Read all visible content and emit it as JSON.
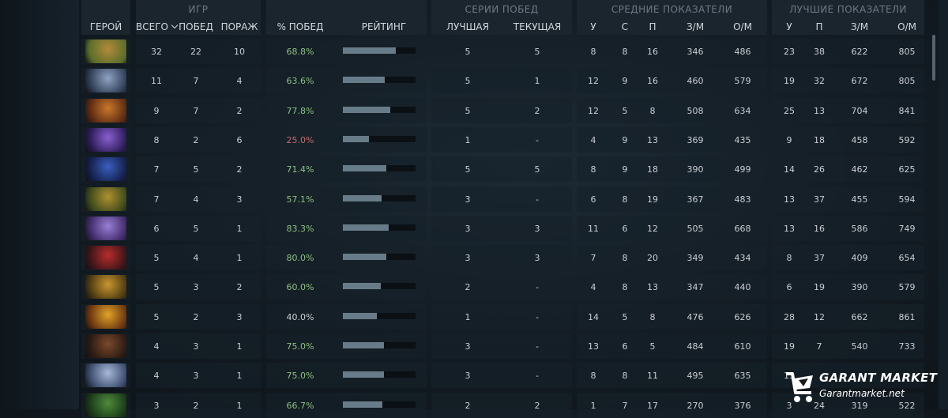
{
  "groups": {
    "games": "ИГР",
    "win_streaks": "СЕРИИ ПОБЕД",
    "averages": "СРЕДНИЕ ПОКАЗАТЕЛИ",
    "best": "ЛУЧШИЕ ПОКАЗАТЕЛИ"
  },
  "columns": {
    "hero": "ГЕРОЙ",
    "total": "ВСЕГО",
    "wins": "ПОБЕД",
    "losses": "ПОРАЖ",
    "winrate": "% ПОБЕД",
    "rating": "РЕЙТИНГ",
    "streak_best": "ЛУЧШАЯ",
    "streak_current": "ТЕКУЩАЯ",
    "avg_kills": "У",
    "avg_deaths": "С",
    "avg_assists": "П",
    "avg_gpm": "З/М",
    "avg_xpm": "О/М",
    "best_kills": "У",
    "best_assists": "П",
    "best_gpm": "З/М",
    "best_xpm": "О/М"
  },
  "rows": [
    {
      "hero_icon": "hero-portrait-1",
      "total": "32",
      "wins": "22",
      "losses": "10",
      "winrate": "68.8%",
      "rating": 0.73,
      "streak_best": "5",
      "streak_current": "5",
      "avg_k": "8",
      "avg_d": "8",
      "avg_a": "16",
      "avg_gpm": "346",
      "avg_xpm": "486",
      "best_k": "23",
      "best_a": "38",
      "best_gpm": "622",
      "best_xpm": "805"
    },
    {
      "hero_icon": "hero-portrait-2",
      "total": "11",
      "wins": "7",
      "losses": "4",
      "winrate": "63.6%",
      "rating": 0.58,
      "streak_best": "5",
      "streak_current": "1",
      "avg_k": "12",
      "avg_d": "9",
      "avg_a": "16",
      "avg_gpm": "460",
      "avg_xpm": "579",
      "best_k": "19",
      "best_a": "32",
      "best_gpm": "672",
      "best_xpm": "805"
    },
    {
      "hero_icon": "hero-portrait-3",
      "total": "9",
      "wins": "7",
      "losses": "2",
      "winrate": "77.8%",
      "rating": 0.65,
      "streak_best": "5",
      "streak_current": "2",
      "avg_k": "12",
      "avg_d": "5",
      "avg_a": "8",
      "avg_gpm": "508",
      "avg_xpm": "634",
      "best_k": "25",
      "best_a": "13",
      "best_gpm": "704",
      "best_xpm": "841"
    },
    {
      "hero_icon": "hero-portrait-4",
      "total": "8",
      "wins": "2",
      "losses": "6",
      "winrate": "25.0%",
      "rating": 0.36,
      "streak_best": "1",
      "streak_current": "-",
      "avg_k": "4",
      "avg_d": "9",
      "avg_a": "13",
      "avg_gpm": "369",
      "avg_xpm": "435",
      "best_k": "9",
      "best_a": "18",
      "best_gpm": "458",
      "best_xpm": "592"
    },
    {
      "hero_icon": "hero-portrait-5",
      "total": "7",
      "wins": "5",
      "losses": "2",
      "winrate": "71.4%",
      "rating": 0.6,
      "streak_best": "5",
      "streak_current": "5",
      "avg_k": "8",
      "avg_d": "9",
      "avg_a": "18",
      "avg_gpm": "390",
      "avg_xpm": "499",
      "best_k": "14",
      "best_a": "26",
      "best_gpm": "462",
      "best_xpm": "625"
    },
    {
      "hero_icon": "hero-portrait-6",
      "total": "7",
      "wins": "4",
      "losses": "3",
      "winrate": "57.1%",
      "rating": 0.53,
      "streak_best": "3",
      "streak_current": "-",
      "avg_k": "6",
      "avg_d": "8",
      "avg_a": "19",
      "avg_gpm": "367",
      "avg_xpm": "483",
      "best_k": "13",
      "best_a": "37",
      "best_gpm": "455",
      "best_xpm": "594"
    },
    {
      "hero_icon": "hero-portrait-7",
      "total": "6",
      "wins": "5",
      "losses": "1",
      "winrate": "83.3%",
      "rating": 0.63,
      "streak_best": "3",
      "streak_current": "3",
      "avg_k": "11",
      "avg_d": "6",
      "avg_a": "12",
      "avg_gpm": "505",
      "avg_xpm": "668",
      "best_k": "13",
      "best_a": "16",
      "best_gpm": "586",
      "best_xpm": "749"
    },
    {
      "hero_icon": "hero-portrait-8",
      "total": "5",
      "wins": "4",
      "losses": "1",
      "winrate": "80.0%",
      "rating": 0.6,
      "streak_best": "3",
      "streak_current": "3",
      "avg_k": "7",
      "avg_d": "8",
      "avg_a": "20",
      "avg_gpm": "349",
      "avg_xpm": "434",
      "best_k": "8",
      "best_a": "37",
      "best_gpm": "409",
      "best_xpm": "654"
    },
    {
      "hero_icon": "hero-portrait-9",
      "total": "5",
      "wins": "3",
      "losses": "2",
      "winrate": "60.0%",
      "rating": 0.52,
      "streak_best": "2",
      "streak_current": "-",
      "avg_k": "4",
      "avg_d": "8",
      "avg_a": "13",
      "avg_gpm": "347",
      "avg_xpm": "440",
      "best_k": "6",
      "best_a": "19",
      "best_gpm": "390",
      "best_xpm": "579"
    },
    {
      "hero_icon": "hero-portrait-10",
      "total": "5",
      "wins": "2",
      "losses": "3",
      "winrate": "40.0%",
      "rating": 0.47,
      "streak_best": "1",
      "streak_current": "-",
      "avg_k": "14",
      "avg_d": "5",
      "avg_a": "8",
      "avg_gpm": "476",
      "avg_xpm": "626",
      "best_k": "28",
      "best_a": "12",
      "best_gpm": "662",
      "best_xpm": "861"
    },
    {
      "hero_icon": "hero-portrait-11",
      "total": "4",
      "wins": "3",
      "losses": "1",
      "winrate": "75.0%",
      "rating": 0.57,
      "streak_best": "3",
      "streak_current": "-",
      "avg_k": "13",
      "avg_d": "6",
      "avg_a": "5",
      "avg_gpm": "484",
      "avg_xpm": "610",
      "best_k": "19",
      "best_a": "7",
      "best_gpm": "540",
      "best_xpm": "733"
    },
    {
      "hero_icon": "hero-portrait-12",
      "total": "4",
      "wins": "3",
      "losses": "1",
      "winrate": "75.0%",
      "rating": 0.57,
      "streak_best": "3",
      "streak_current": "-",
      "avg_k": "8",
      "avg_d": "8",
      "avg_a": "11",
      "avg_gpm": "495",
      "avg_xpm": "635",
      "best_k": "13",
      "best_a": "",
      "best_gpm": "",
      "best_xpm": ""
    },
    {
      "hero_icon": "hero-portrait-13",
      "total": "3",
      "wins": "2",
      "losses": "1",
      "winrate": "66.7%",
      "rating": 0.54,
      "streak_best": "2",
      "streak_current": "2",
      "avg_k": "1",
      "avg_d": "7",
      "avg_a": "17",
      "avg_gpm": "270",
      "avg_xpm": "376",
      "best_k": "3",
      "best_a": "24",
      "best_gpm": "319",
      "best_xpm": "522"
    }
  ],
  "watermark": {
    "title": "GARANT MARKET",
    "url": "Garantmarket.net"
  },
  "colors": {
    "winrate_good": "#8dc07f",
    "winrate_bad": "#c56e6a",
    "rating_bar": "#687b88"
  }
}
